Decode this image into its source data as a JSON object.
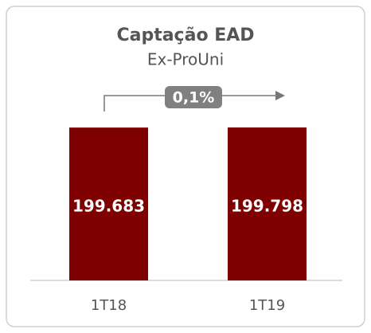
{
  "chart_data": {
    "type": "bar",
    "title": "Captação EAD",
    "subtitle": "Ex-ProUni",
    "categories": [
      "1T18",
      "1T19"
    ],
    "values": [
      199683,
      199798
    ],
    "value_labels": [
      "199.683",
      "199.798"
    ],
    "color": "#7f0000",
    "annotation": "0,1%"
  }
}
